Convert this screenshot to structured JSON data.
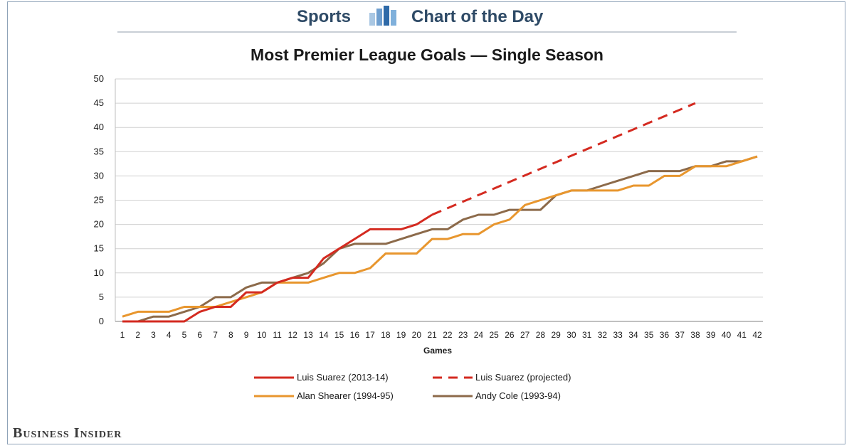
{
  "header": {
    "left_label": "Sports",
    "right_label": "Chart of the Day",
    "icon": "bar-chart-icon",
    "text_color": "#2e4a66"
  },
  "brand": "Business Insider",
  "chart_data": {
    "type": "line",
    "title": "Most Premier League Goals — Single Season",
    "xlabel": "Games",
    "ylabel": "",
    "xlim": [
      1,
      42
    ],
    "ylim": [
      0,
      50
    ],
    "yticks": [
      0,
      5,
      10,
      15,
      20,
      25,
      30,
      35,
      40,
      45,
      50
    ],
    "xticks": [
      1,
      2,
      3,
      4,
      5,
      6,
      7,
      8,
      9,
      10,
      11,
      12,
      13,
      14,
      15,
      16,
      17,
      18,
      19,
      20,
      21,
      22,
      23,
      24,
      25,
      26,
      27,
      28,
      29,
      30,
      31,
      32,
      33,
      34,
      35,
      36,
      37,
      38,
      39,
      40,
      41,
      42
    ],
    "grid": "horizontal",
    "legend_position": "bottom",
    "series": [
      {
        "name": "Luis Suarez (2013-14)",
        "color": "#d42a20",
        "style": "solid",
        "x": [
          1,
          2,
          3,
          4,
          5,
          6,
          7,
          8,
          9,
          10,
          11,
          12,
          13,
          14,
          15,
          16,
          17,
          18,
          19,
          20,
          21
        ],
        "y": [
          0,
          0,
          0,
          0,
          0,
          2,
          3,
          3,
          6,
          6,
          8,
          9,
          9,
          13,
          15,
          17,
          19,
          19,
          19,
          20,
          22
        ]
      },
      {
        "name": "Luis Suarez (projected)",
        "color": "#d42a20",
        "style": "dashed",
        "x": [
          21,
          38
        ],
        "y": [
          22,
          45
        ]
      },
      {
        "name": "Alan Shearer (1994-95)",
        "color": "#e8962e",
        "style": "solid",
        "x": [
          1,
          2,
          3,
          4,
          5,
          6,
          7,
          8,
          9,
          10,
          11,
          12,
          13,
          14,
          15,
          16,
          17,
          18,
          19,
          20,
          21,
          22,
          23,
          24,
          25,
          26,
          27,
          28,
          29,
          30,
          31,
          32,
          33,
          34,
          35,
          36,
          37,
          38,
          39,
          40,
          41,
          42
        ],
        "y": [
          1,
          2,
          2,
          2,
          3,
          3,
          3,
          4,
          5,
          6,
          8,
          8,
          8,
          9,
          10,
          10,
          11,
          14,
          14,
          14,
          17,
          17,
          18,
          18,
          20,
          21,
          24,
          25,
          26,
          27,
          27,
          27,
          27,
          28,
          28,
          30,
          30,
          32,
          32,
          32,
          33,
          34
        ]
      },
      {
        "name": "Andy Cole (1993-94)",
        "color": "#8c6a4a",
        "style": "solid",
        "x": [
          1,
          2,
          3,
          4,
          5,
          6,
          7,
          8,
          9,
          10,
          11,
          12,
          13,
          14,
          15,
          16,
          17,
          18,
          19,
          20,
          21,
          22,
          23,
          24,
          25,
          26,
          27,
          28,
          29,
          30,
          31,
          32,
          33,
          34,
          35,
          36,
          37,
          38,
          39,
          40,
          41,
          42
        ],
        "y": [
          0,
          0,
          1,
          1,
          2,
          3,
          5,
          5,
          7,
          8,
          8,
          9,
          10,
          12,
          15,
          16,
          16,
          16,
          17,
          18,
          19,
          19,
          21,
          22,
          22,
          23,
          23,
          23,
          26,
          27,
          27,
          28,
          29,
          30,
          31,
          31,
          31,
          32,
          32,
          33,
          33,
          34
        ]
      }
    ]
  }
}
